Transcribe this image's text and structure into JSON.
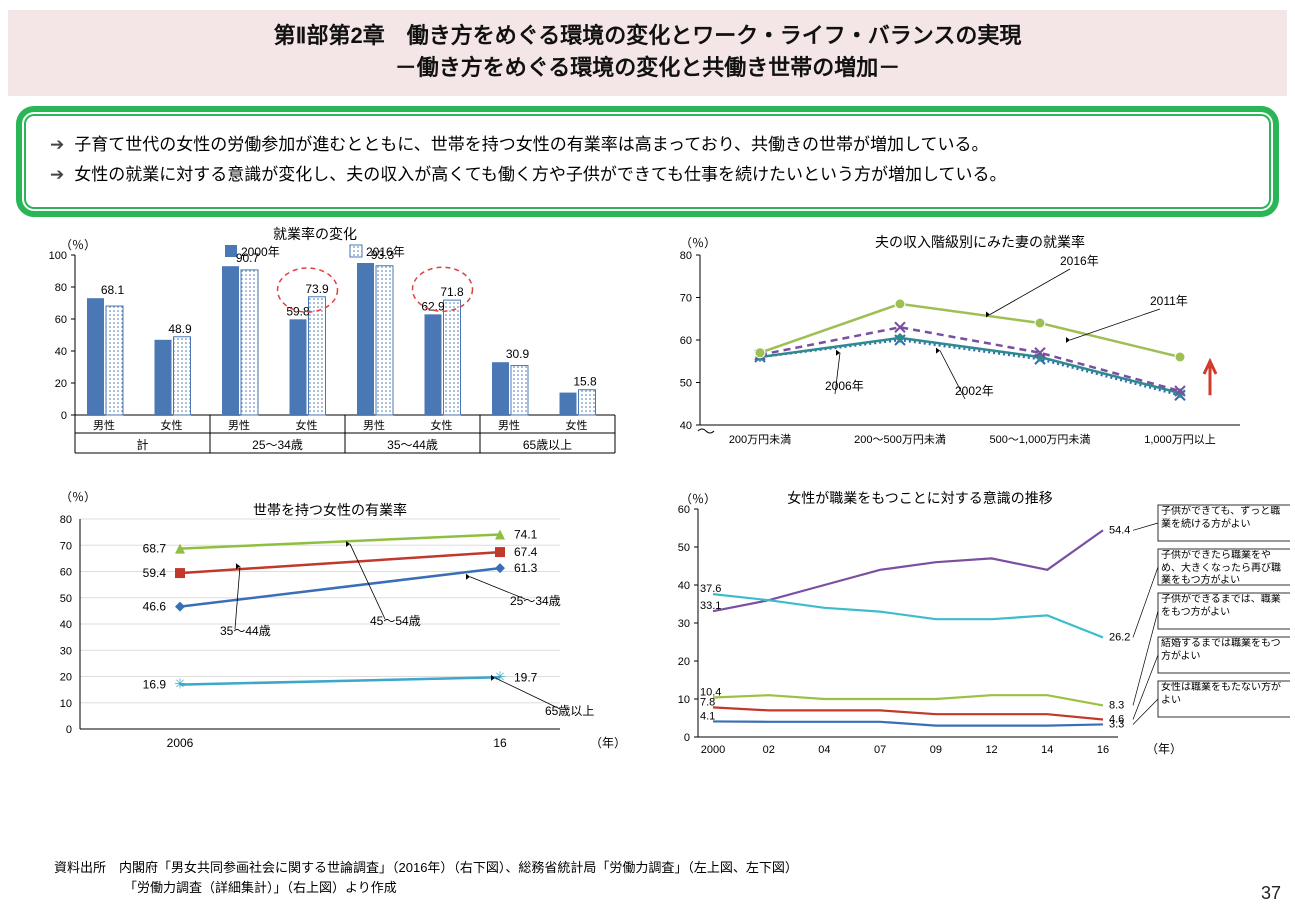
{
  "header": {
    "line1": "第Ⅱ部第2章　働き方をめぐる環境の変化とワーク・ライフ・バランスの実現",
    "line2": "－働き方をめぐる環境の変化と共働き世帯の増加－"
  },
  "summary": {
    "items": [
      "子育て世代の女性の労働参加が進むとともに、世帯を持つ女性の有業率は高まっており、共働きの世帯が増加している。",
      "女性の就業に対する意識が変化し、夫の収入が高くても働く方や子供ができても仕事を続けたいという方が増加している。"
    ]
  },
  "chart_tl": {
    "title": "就業率の変化",
    "y_unit": "（％）",
    "ylim": [
      0,
      100
    ],
    "ytick_step": 20,
    "legend": [
      {
        "label": "2000年",
        "fill": "#4a78b5",
        "pattern": false
      },
      {
        "label": "2016年",
        "fill": "#ffffff",
        "pattern": true,
        "stroke": "#4a78b5"
      }
    ],
    "group_labels": [
      "計",
      "25～34歳",
      "35～44歳",
      "65歳以上"
    ],
    "sub_labels": [
      "男性",
      "女性"
    ],
    "bar_label_fontsize": 12,
    "data": [
      {
        "group": "計",
        "sub": "男性",
        "y2000": 73,
        "y2016": 68.1,
        "show_label": 68.1
      },
      {
        "group": "計",
        "sub": "女性",
        "y2000": 47,
        "y2016": 48.9,
        "show_label": 48.9
      },
      {
        "group": "25～34歳",
        "sub": "男性",
        "y2000": 93,
        "y2016": 90.7,
        "show_label": 90.7
      },
      {
        "group": "25～34歳",
        "sub": "女性",
        "y2000": 59.8,
        "y2016": 73.9,
        "labels": [
          59.8,
          73.9
        ],
        "circled": true
      },
      {
        "group": "35～44歳",
        "sub": "男性",
        "y2000": 95,
        "y2016": 93.3,
        "show_label": 93.3
      },
      {
        "group": "35～44歳",
        "sub": "女性",
        "y2000": 62.9,
        "y2016": 71.8,
        "labels": [
          62.9,
          71.8
        ],
        "circled": true
      },
      {
        "group": "65歳以上",
        "sub": "男性",
        "y2000": 33,
        "y2016": 30.9,
        "show_label": 30.9
      },
      {
        "group": "65歳以上",
        "sub": "女性",
        "y2000": 14,
        "y2016": 15.8,
        "show_label": 15.8
      }
    ],
    "colors": {
      "bar2000": "#4a78b5",
      "bar2016_fill": "#e9f0fa",
      "bar2016_stroke": "#4a78b5",
      "axis": "#000000"
    }
  },
  "chart_tr": {
    "title": "夫の収入階級別にみた妻の就業率",
    "y_unit": "（％）",
    "ylim": [
      40,
      80
    ],
    "ytick_step": 10,
    "x_labels": [
      "200万円未満",
      "200～500万円未満",
      "500～1,000万円未満",
      "1,000万円以上"
    ],
    "series": [
      {
        "name": "2002年",
        "color": "#2a6fb0",
        "style": "dotted",
        "marker": "cross",
        "values": [
          56,
          60,
          55.5,
          47
        ]
      },
      {
        "name": "2006年",
        "color": "#2f8a8f",
        "style": "solid",
        "marker": "diamond",
        "values": [
          56,
          60.5,
          56,
          47.5
        ]
      },
      {
        "name": "2011年",
        "color": "#7a4fa0",
        "style": "dashed",
        "marker": "cross",
        "values": [
          56.5,
          63,
          57,
          48
        ]
      },
      {
        "name": "2016年",
        "color": "#9ebf54",
        "style": "solid",
        "marker": "circle",
        "values": [
          57,
          68.5,
          64,
          56
        ]
      }
    ],
    "arrow_color": "#d23a2a",
    "arrow_label": "↑"
  },
  "chart_bl": {
    "title": "世帯を持つ女性の有業率",
    "y_unit": "（％）",
    "x_unit": "（年）",
    "ylim": [
      0,
      80
    ],
    "ytick_step": 10,
    "x_labels": [
      "2006",
      "16"
    ],
    "series": [
      {
        "name": "25～34歳",
        "color": "#3b6fb5",
        "marker": "diamond",
        "values": [
          46.6,
          61.3
        ]
      },
      {
        "name": "35～44歳",
        "color": "#c0392b",
        "marker": "square",
        "values": [
          59.4,
          67.4
        ]
      },
      {
        "name": "45～54歳",
        "color": "#8fbf3f",
        "marker": "triangle",
        "values": [
          68.7,
          74.1
        ]
      },
      {
        "name": "65歳以上",
        "color": "#3ba7c9",
        "marker": "star",
        "values": [
          16.9,
          19.7
        ]
      }
    ],
    "value_label_fontsize": 12
  },
  "chart_br": {
    "title": "女性が職業をもつことに対する意識の推移",
    "y_unit": "（％）",
    "x_unit": "（年）",
    "ylim": [
      0,
      60
    ],
    "ytick_step": 10,
    "x_labels": [
      "2000",
      "02",
      "04",
      "07",
      "09",
      "12",
      "14",
      "16"
    ],
    "series": [
      {
        "legend": "子供ができても、ずっと職業を続ける方がよい",
        "color": "#7a4fa0",
        "values": [
          33.1,
          36,
          40,
          44,
          46,
          47,
          44,
          54.4
        ]
      },
      {
        "legend": "子供ができたら職業をやめ、大きくなったら再び職業をもつ方がよい",
        "color": "#3dbccc",
        "values": [
          37.6,
          36,
          34,
          33,
          31,
          31,
          32,
          26.2
        ]
      },
      {
        "legend": "子供ができるまでは、職業をもつ方がよい",
        "color": "#9ac13f",
        "values": [
          10.4,
          11,
          10,
          10,
          10,
          11,
          11,
          8.3
        ]
      },
      {
        "legend": "結婚するまでは職業をもつ方がよい",
        "color": "#c0392b",
        "values": [
          7.8,
          7,
          7,
          7,
          6,
          6,
          6,
          4.6
        ]
      },
      {
        "legend": "女性は職業をもたない方がよい",
        "color": "#3b6fb5",
        "values": [
          4.1,
          4,
          4,
          4,
          3,
          3,
          3,
          3.3
        ]
      }
    ]
  },
  "sources": {
    "line1": "資料出所　内閣府「男女共同参画社会に関する世論調査」（2016年）（右下図）、総務省統計局「労働力調査」（左上図、左下図）",
    "line2": "「労働力調査（詳細集計）」（右上図）より作成"
  },
  "page_number": "37"
}
